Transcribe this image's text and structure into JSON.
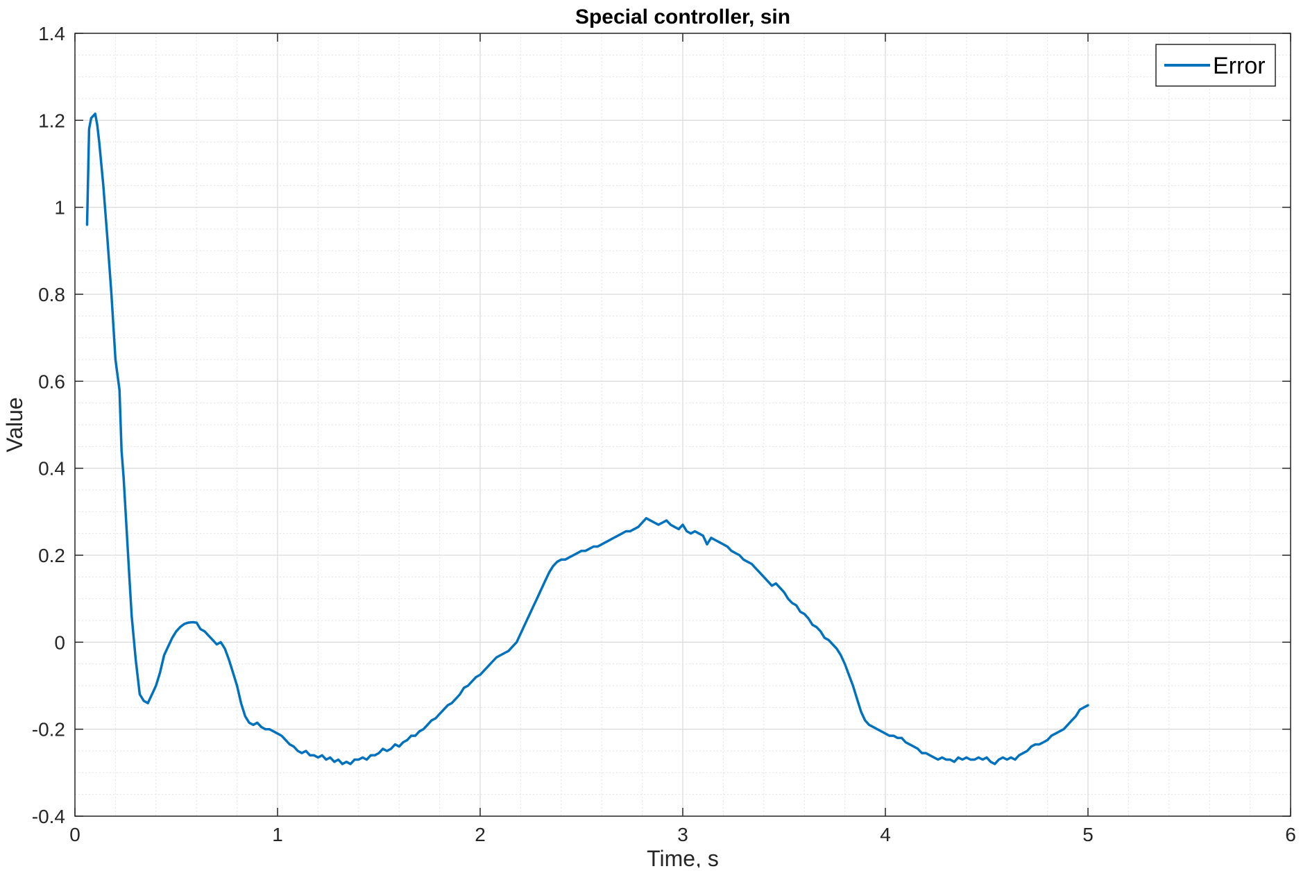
{
  "chart_data": {
    "type": "line",
    "title": "Special controller, sin",
    "xlabel": "Time, s",
    "ylabel": "Value",
    "xlim": [
      0,
      6
    ],
    "ylim": [
      -0.4,
      1.4
    ],
    "x_ticks": [
      0,
      1,
      2,
      3,
      4,
      5,
      6
    ],
    "x_tick_labels": [
      "0",
      "1",
      "2",
      "3",
      "4",
      "5",
      "6"
    ],
    "y_ticks": [
      -0.4,
      -0.2,
      0,
      0.2,
      0.4,
      0.6,
      0.8,
      1,
      1.2,
      1.4
    ],
    "y_tick_labels": [
      "-0.4",
      "-0.2",
      "0",
      "0.2",
      "0.4",
      "0.6",
      "0.8",
      "1",
      "1.2",
      "1.4"
    ],
    "grid": true,
    "minor_grid": true,
    "legend_position": "top-right",
    "series": [
      {
        "name": "Error",
        "color": "#0072BD",
        "points": [
          [
            0.06,
            0.96
          ],
          [
            0.07,
            1.18
          ],
          [
            0.08,
            1.205
          ],
          [
            0.09,
            1.21
          ],
          [
            0.1,
            1.215
          ],
          [
            0.11,
            1.19
          ],
          [
            0.12,
            1.15
          ],
          [
            0.14,
            1.05
          ],
          [
            0.16,
            0.93
          ],
          [
            0.18,
            0.8
          ],
          [
            0.2,
            0.65
          ],
          [
            0.22,
            0.58
          ],
          [
            0.23,
            0.44
          ],
          [
            0.24,
            0.38
          ],
          [
            0.25,
            0.3
          ],
          [
            0.26,
            0.22
          ],
          [
            0.27,
            0.14
          ],
          [
            0.28,
            0.06
          ],
          [
            0.29,
            0.01
          ],
          [
            0.3,
            -0.04
          ],
          [
            0.31,
            -0.08
          ],
          [
            0.32,
            -0.12
          ],
          [
            0.34,
            -0.135
          ],
          [
            0.36,
            -0.14
          ],
          [
            0.38,
            -0.12
          ],
          [
            0.4,
            -0.1
          ],
          [
            0.42,
            -0.07
          ],
          [
            0.44,
            -0.03
          ],
          [
            0.46,
            -0.01
          ],
          [
            0.48,
            0.01
          ],
          [
            0.5,
            0.025
          ],
          [
            0.52,
            0.035
          ],
          [
            0.54,
            0.042
          ],
          [
            0.56,
            0.045
          ],
          [
            0.58,
            0.046
          ],
          [
            0.6,
            0.045
          ],
          [
            0.62,
            0.03
          ],
          [
            0.64,
            0.025
          ],
          [
            0.66,
            0.015
          ],
          [
            0.68,
            0.005
          ],
          [
            0.7,
            -0.005
          ],
          [
            0.72,
            0.0
          ],
          [
            0.74,
            -0.015
          ],
          [
            0.76,
            -0.04
          ],
          [
            0.78,
            -0.07
          ],
          [
            0.8,
            -0.1
          ],
          [
            0.82,
            -0.14
          ],
          [
            0.84,
            -0.17
          ],
          [
            0.86,
            -0.185
          ],
          [
            0.88,
            -0.19
          ],
          [
            0.9,
            -0.185
          ],
          [
            0.92,
            -0.195
          ],
          [
            0.94,
            -0.2
          ],
          [
            0.96,
            -0.2
          ],
          [
            0.98,
            -0.205
          ],
          [
            1.0,
            -0.21
          ],
          [
            1.02,
            -0.215
          ],
          [
            1.04,
            -0.225
          ],
          [
            1.06,
            -0.235
          ],
          [
            1.08,
            -0.24
          ],
          [
            1.1,
            -0.25
          ],
          [
            1.12,
            -0.255
          ],
          [
            1.14,
            -0.25
          ],
          [
            1.16,
            -0.26
          ],
          [
            1.18,
            -0.26
          ],
          [
            1.2,
            -0.265
          ],
          [
            1.22,
            -0.26
          ],
          [
            1.24,
            -0.27
          ],
          [
            1.26,
            -0.265
          ],
          [
            1.28,
            -0.275
          ],
          [
            1.3,
            -0.27
          ],
          [
            1.32,
            -0.28
          ],
          [
            1.34,
            -0.275
          ],
          [
            1.36,
            -0.28
          ],
          [
            1.38,
            -0.27
          ],
          [
            1.4,
            -0.27
          ],
          [
            1.42,
            -0.265
          ],
          [
            1.44,
            -0.27
          ],
          [
            1.46,
            -0.26
          ],
          [
            1.48,
            -0.26
          ],
          [
            1.5,
            -0.255
          ],
          [
            1.52,
            -0.245
          ],
          [
            1.54,
            -0.25
          ],
          [
            1.56,
            -0.245
          ],
          [
            1.58,
            -0.235
          ],
          [
            1.6,
            -0.24
          ],
          [
            1.62,
            -0.23
          ],
          [
            1.64,
            -0.225
          ],
          [
            1.66,
            -0.215
          ],
          [
            1.68,
            -0.215
          ],
          [
            1.7,
            -0.205
          ],
          [
            1.72,
            -0.2
          ],
          [
            1.74,
            -0.19
          ],
          [
            1.76,
            -0.18
          ],
          [
            1.78,
            -0.175
          ],
          [
            1.8,
            -0.165
          ],
          [
            1.82,
            -0.155
          ],
          [
            1.84,
            -0.145
          ],
          [
            1.86,
            -0.14
          ],
          [
            1.88,
            -0.13
          ],
          [
            1.9,
            -0.12
          ],
          [
            1.92,
            -0.105
          ],
          [
            1.94,
            -0.1
          ],
          [
            1.96,
            -0.09
          ],
          [
            1.98,
            -0.08
          ],
          [
            2.0,
            -0.075
          ],
          [
            2.02,
            -0.065
          ],
          [
            2.04,
            -0.055
          ],
          [
            2.06,
            -0.045
          ],
          [
            2.08,
            -0.035
          ],
          [
            2.1,
            -0.03
          ],
          [
            2.12,
            -0.025
          ],
          [
            2.14,
            -0.02
          ],
          [
            2.16,
            -0.01
          ],
          [
            2.18,
            0.0
          ],
          [
            2.2,
            0.02
          ],
          [
            2.22,
            0.04
          ],
          [
            2.24,
            0.06
          ],
          [
            2.26,
            0.08
          ],
          [
            2.28,
            0.1
          ],
          [
            2.3,
            0.12
          ],
          [
            2.32,
            0.14
          ],
          [
            2.34,
            0.16
          ],
          [
            2.36,
            0.175
          ],
          [
            2.38,
            0.185
          ],
          [
            2.4,
            0.19
          ],
          [
            2.42,
            0.19
          ],
          [
            2.44,
            0.195
          ],
          [
            2.46,
            0.2
          ],
          [
            2.48,
            0.205
          ],
          [
            2.5,
            0.21
          ],
          [
            2.52,
            0.21
          ],
          [
            2.54,
            0.215
          ],
          [
            2.56,
            0.22
          ],
          [
            2.58,
            0.22
          ],
          [
            2.6,
            0.225
          ],
          [
            2.62,
            0.23
          ],
          [
            2.64,
            0.235
          ],
          [
            2.66,
            0.24
          ],
          [
            2.68,
            0.245
          ],
          [
            2.7,
            0.25
          ],
          [
            2.72,
            0.255
          ],
          [
            2.74,
            0.255
          ],
          [
            2.76,
            0.26
          ],
          [
            2.78,
            0.265
          ],
          [
            2.8,
            0.275
          ],
          [
            2.82,
            0.285
          ],
          [
            2.84,
            0.28
          ],
          [
            2.86,
            0.275
          ],
          [
            2.88,
            0.27
          ],
          [
            2.9,
            0.275
          ],
          [
            2.92,
            0.28
          ],
          [
            2.94,
            0.27
          ],
          [
            2.96,
            0.265
          ],
          [
            2.98,
            0.26
          ],
          [
            3.0,
            0.27
          ],
          [
            3.02,
            0.255
          ],
          [
            3.04,
            0.25
          ],
          [
            3.06,
            0.255
          ],
          [
            3.08,
            0.25
          ],
          [
            3.1,
            0.245
          ],
          [
            3.12,
            0.225
          ],
          [
            3.14,
            0.24
          ],
          [
            3.16,
            0.235
          ],
          [
            3.18,
            0.23
          ],
          [
            3.2,
            0.225
          ],
          [
            3.22,
            0.22
          ],
          [
            3.24,
            0.21
          ],
          [
            3.26,
            0.205
          ],
          [
            3.28,
            0.2
          ],
          [
            3.3,
            0.19
          ],
          [
            3.32,
            0.185
          ],
          [
            3.34,
            0.18
          ],
          [
            3.36,
            0.17
          ],
          [
            3.38,
            0.16
          ],
          [
            3.4,
            0.15
          ],
          [
            3.42,
            0.14
          ],
          [
            3.44,
            0.13
          ],
          [
            3.46,
            0.135
          ],
          [
            3.48,
            0.125
          ],
          [
            3.5,
            0.115
          ],
          [
            3.52,
            0.1
          ],
          [
            3.54,
            0.09
          ],
          [
            3.56,
            0.085
          ],
          [
            3.58,
            0.07
          ],
          [
            3.6,
            0.065
          ],
          [
            3.62,
            0.055
          ],
          [
            3.64,
            0.04
          ],
          [
            3.66,
            0.035
          ],
          [
            3.68,
            0.025
          ],
          [
            3.7,
            0.01
          ],
          [
            3.72,
            0.005
          ],
          [
            3.74,
            -0.005
          ],
          [
            3.76,
            -0.015
          ],
          [
            3.78,
            -0.03
          ],
          [
            3.8,
            -0.05
          ],
          [
            3.82,
            -0.075
          ],
          [
            3.84,
            -0.1
          ],
          [
            3.86,
            -0.13
          ],
          [
            3.88,
            -0.16
          ],
          [
            3.9,
            -0.18
          ],
          [
            3.92,
            -0.19
          ],
          [
            3.94,
            -0.195
          ],
          [
            3.96,
            -0.2
          ],
          [
            3.98,
            -0.205
          ],
          [
            4.0,
            -0.21
          ],
          [
            4.02,
            -0.215
          ],
          [
            4.04,
            -0.215
          ],
          [
            4.06,
            -0.22
          ],
          [
            4.08,
            -0.22
          ],
          [
            4.1,
            -0.23
          ],
          [
            4.12,
            -0.235
          ],
          [
            4.14,
            -0.24
          ],
          [
            4.16,
            -0.245
          ],
          [
            4.18,
            -0.255
          ],
          [
            4.2,
            -0.255
          ],
          [
            4.22,
            -0.26
          ],
          [
            4.24,
            -0.265
          ],
          [
            4.26,
            -0.27
          ],
          [
            4.28,
            -0.265
          ],
          [
            4.3,
            -0.27
          ],
          [
            4.32,
            -0.27
          ],
          [
            4.34,
            -0.275
          ],
          [
            4.36,
            -0.265
          ],
          [
            4.38,
            -0.27
          ],
          [
            4.4,
            -0.265
          ],
          [
            4.42,
            -0.27
          ],
          [
            4.44,
            -0.27
          ],
          [
            4.46,
            -0.265
          ],
          [
            4.48,
            -0.27
          ],
          [
            4.5,
            -0.265
          ],
          [
            4.52,
            -0.275
          ],
          [
            4.54,
            -0.28
          ],
          [
            4.56,
            -0.27
          ],
          [
            4.58,
            -0.265
          ],
          [
            4.6,
            -0.27
          ],
          [
            4.62,
            -0.265
          ],
          [
            4.64,
            -0.27
          ],
          [
            4.66,
            -0.26
          ],
          [
            4.68,
            -0.255
          ],
          [
            4.7,
            -0.25
          ],
          [
            4.72,
            -0.24
          ],
          [
            4.74,
            -0.235
          ],
          [
            4.76,
            -0.235
          ],
          [
            4.78,
            -0.23
          ],
          [
            4.8,
            -0.225
          ],
          [
            4.82,
            -0.215
          ],
          [
            4.84,
            -0.21
          ],
          [
            4.86,
            -0.205
          ],
          [
            4.88,
            -0.2
          ],
          [
            4.9,
            -0.19
          ],
          [
            4.92,
            -0.18
          ],
          [
            4.94,
            -0.17
          ],
          [
            4.96,
            -0.155
          ],
          [
            4.98,
            -0.15
          ],
          [
            5.0,
            -0.145
          ]
        ]
      }
    ]
  }
}
